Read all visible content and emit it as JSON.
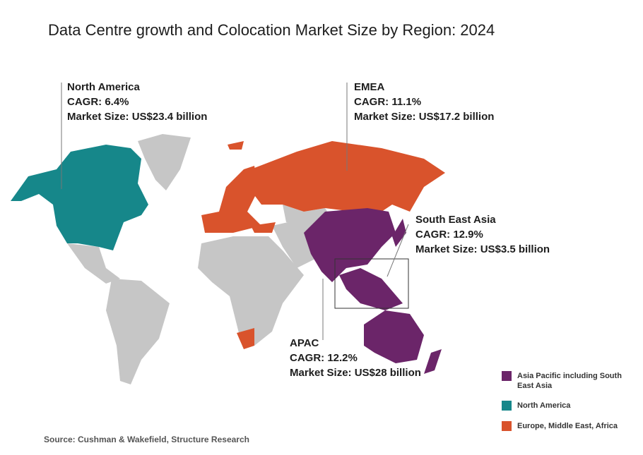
{
  "title": "Data Centre growth and Colocation Market Size by Region: 2024",
  "regions": [
    {
      "name": "North America",
      "cagr": "CAGR: 6.4%",
      "market_size": "Market Size: US$23.4 billion"
    },
    {
      "name": "EMEA",
      "cagr": "CAGR: 11.1%",
      "market_size": "Market Size: US$17.2 billion"
    },
    {
      "name": "South East Asia",
      "cagr": "CAGR: 12.9%",
      "market_size": "Market Size: US$3.5 billion"
    },
    {
      "name": "APAC",
      "cagr": "CAGR: 12.2%",
      "market_size": "Market Size: US$28 billion"
    }
  ],
  "legend": [
    {
      "label": "Asia Pacific including South East Asia",
      "color": "#6b2569"
    },
    {
      "label": "North America",
      "color": "#16878a"
    },
    {
      "label": "Europe, Middle East, Africa",
      "color": "#d9532c"
    }
  ],
  "source": "Source: Cushman & Wakefield, Structure Research"
}
